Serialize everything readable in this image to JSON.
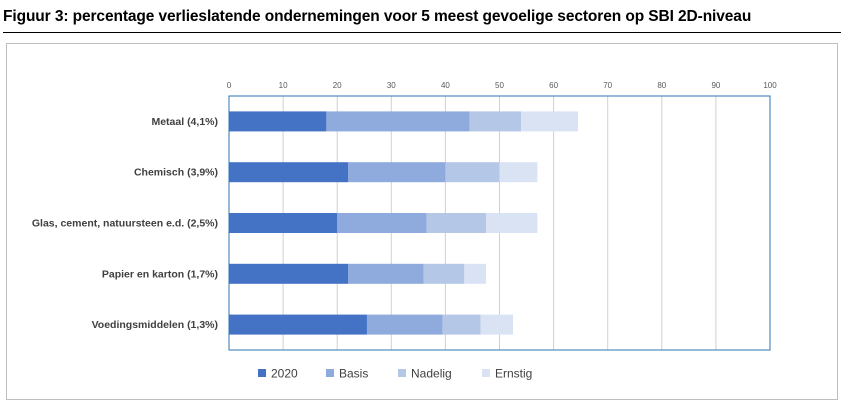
{
  "caption": "Figuur 3: percentage verlieslatende ondernemingen  voor 5 meest gevoelige sectoren op SBI 2D-niveau",
  "colors": {
    "s2020": "#4472c4",
    "basis": "#8faadc",
    "nadelig": "#b4c7e7",
    "ernstig": "#dae3f3",
    "frame": "#bfbfbf",
    "plot_border": "#2e75b6",
    "grid": "#d0d0d0"
  },
  "chart_data": {
    "type": "bar",
    "orientation": "horizontal",
    "stacked": true,
    "title": "",
    "xlabel": "",
    "ylabel": "",
    "xlim": [
      0,
      100
    ],
    "xticks": [
      "0",
      "10",
      "20",
      "30",
      "40",
      "50",
      "60",
      "70",
      "80",
      "90",
      "100"
    ],
    "grid": true,
    "legend_position": "bottom",
    "categories": [
      "Metaal (4,1%)",
      "Chemisch (3,9%)",
      "Glas, cement, natuursteen e.d. (2,5%)",
      "Papier en karton (1,7%)",
      "Voedingsmiddelen (1,3%)"
    ],
    "series": [
      {
        "name": "2020",
        "color": "#4472c4",
        "values": [
          18,
          22,
          20,
          22,
          25.5
        ]
      },
      {
        "name": "Basis",
        "color": "#8faadc",
        "values": [
          26.5,
          18,
          16.5,
          14,
          14
        ]
      },
      {
        "name": "Nadelig",
        "color": "#b4c7e7",
        "values": [
          9.5,
          10,
          11,
          7.5,
          7
        ]
      },
      {
        "name": "Ernstig",
        "color": "#dae3f3",
        "values": [
          10.5,
          7,
          9.5,
          4,
          6
        ]
      }
    ]
  }
}
